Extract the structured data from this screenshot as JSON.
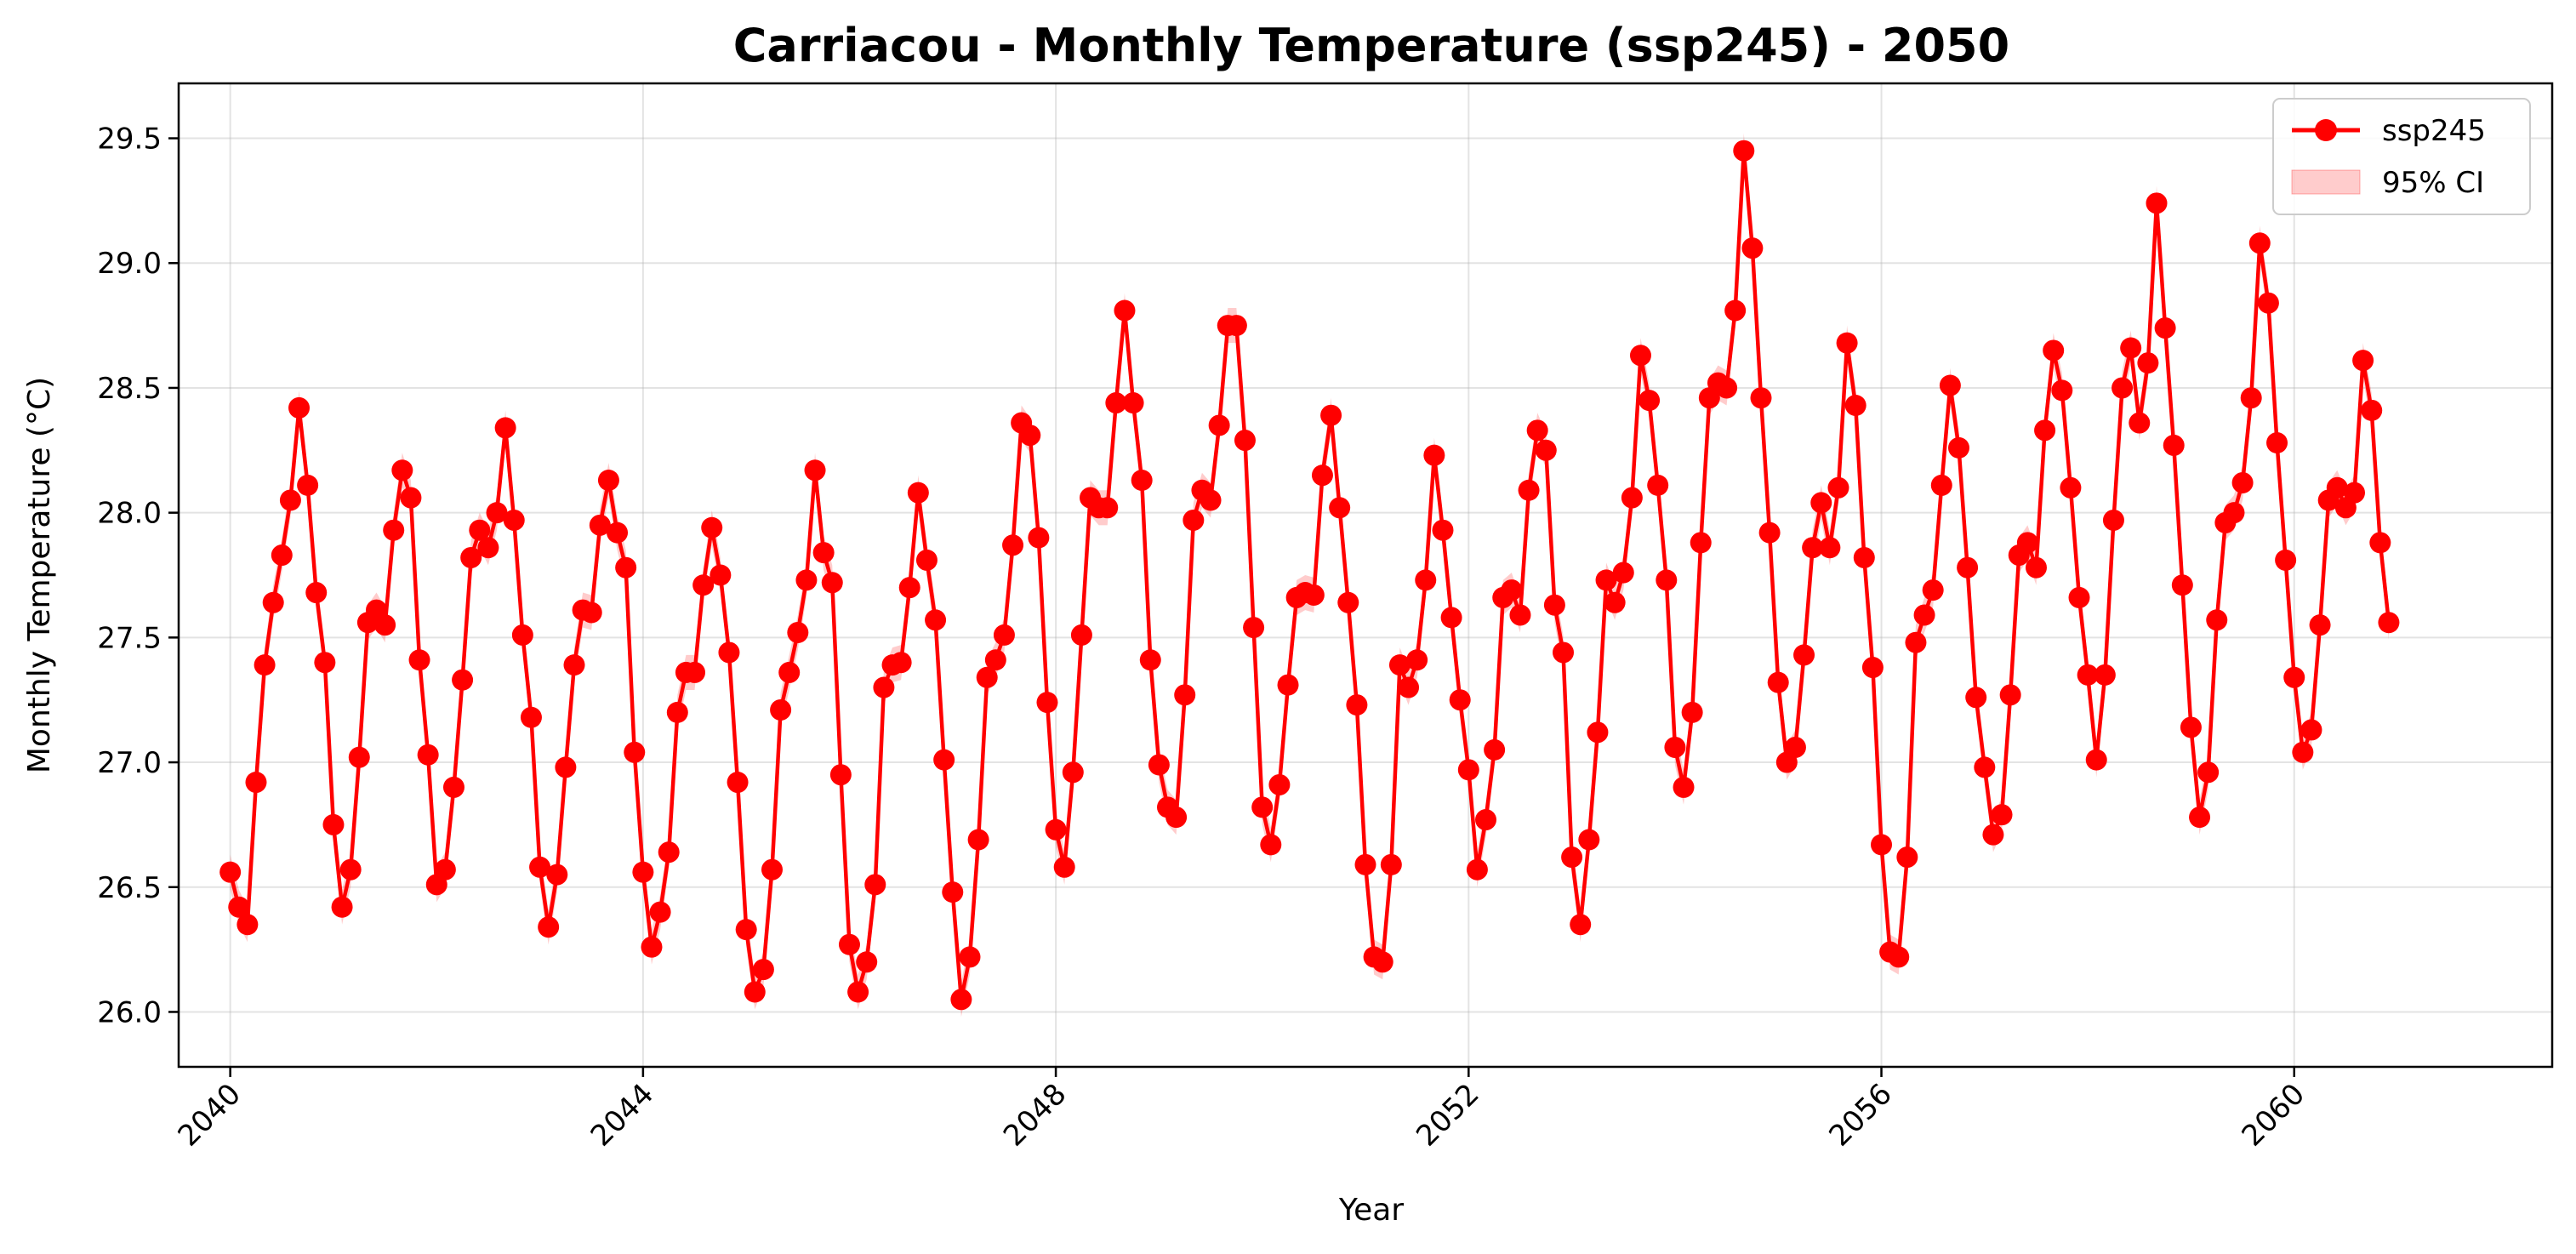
{
  "chart_data": {
    "type": "line",
    "title": "Carriacou - Monthly Temperature (ssp245) - 2050",
    "xlabel": "Year",
    "ylabel": "Monthly Temperature (°C)",
    "xlim": [
      2039.5,
      2062.5
    ],
    "ylim": [
      25.78,
      29.72
    ],
    "x_ticks": [
      2040,
      2044,
      2048,
      2052,
      2056,
      2060
    ],
    "x_tick_labels": [
      "2040",
      "2044",
      "2048",
      "2052",
      "2056",
      "2060"
    ],
    "y_ticks": [
      26.0,
      26.5,
      27.0,
      27.5,
      28.0,
      28.5,
      29.0,
      29.5
    ],
    "y_tick_labels": [
      "26.0",
      "26.5",
      "27.0",
      "27.5",
      "28.0",
      "28.5",
      "29.0",
      "29.5"
    ],
    "grid": true,
    "legend_position": "top-right",
    "x_start": "2040-01",
    "x_step": "1 month",
    "series": [
      {
        "name": "ssp245",
        "color": "#ff0000",
        "marker": "circle",
        "values": [
          26.56,
          26.42,
          26.35,
          26.92,
          27.39,
          27.64,
          27.83,
          28.05,
          28.42,
          28.11,
          27.68,
          27.4,
          26.75,
          26.42,
          26.57,
          27.02,
          27.56,
          27.61,
          27.55,
          27.93,
          28.17,
          28.06,
          27.41,
          27.03,
          26.51,
          26.57,
          26.9,
          27.33,
          27.82,
          27.93,
          27.86,
          28.0,
          28.34,
          27.97,
          27.51,
          27.18,
          26.58,
          26.34,
          26.55,
          26.98,
          27.39,
          27.61,
          27.6,
          27.95,
          28.13,
          27.92,
          27.78,
          27.04,
          26.56,
          26.26,
          26.4,
          26.64,
          27.2,
          27.36,
          27.36,
          27.71,
          27.94,
          27.75,
          27.44,
          26.92,
          26.33,
          26.08,
          26.17,
          26.57,
          27.21,
          27.36,
          27.52,
          27.73,
          28.17,
          27.84,
          27.72,
          26.95,
          26.27,
          26.08,
          26.2,
          26.51,
          27.3,
          27.39,
          27.4,
          27.7,
          28.08,
          27.81,
          27.57,
          27.01,
          26.48,
          26.05,
          26.22,
          26.69,
          27.34,
          27.41,
          27.51,
          27.87,
          28.36,
          28.31,
          27.9,
          27.24,
          26.73,
          26.58,
          26.96,
          27.51,
          28.06,
          28.02,
          28.02,
          28.44,
          28.81,
          28.44,
          28.13,
          27.41,
          26.99,
          26.82,
          26.78,
          27.27,
          27.97,
          28.09,
          28.05,
          28.35,
          28.75,
          28.75,
          28.29,
          27.54,
          26.82,
          26.67,
          26.91,
          27.31,
          27.66,
          27.68,
          27.67,
          28.15,
          28.39,
          28.02,
          27.64,
          27.23,
          26.59,
          26.22,
          26.2,
          26.59,
          27.39,
          27.3,
          27.41,
          27.73,
          28.23,
          27.93,
          27.58,
          27.25,
          26.97,
          26.57,
          26.77,
          27.05,
          27.66,
          27.69,
          27.59,
          28.09,
          28.33,
          28.25,
          27.63,
          27.44,
          26.62,
          26.35,
          26.69,
          27.12,
          27.73,
          27.64,
          27.76,
          28.06,
          28.63,
          28.45,
          28.11,
          27.73,
          27.06,
          26.9,
          27.2,
          27.88,
          28.46,
          28.52,
          28.5,
          28.81,
          29.45,
          29.06,
          28.46,
          27.92,
          27.32,
          27.0,
          27.06,
          27.43,
          27.86,
          28.04,
          27.86,
          28.1,
          28.68,
          28.43,
          27.82,
          27.38,
          26.67,
          26.24,
          26.22,
          26.62,
          27.48,
          27.59,
          27.69,
          28.11,
          28.51,
          28.26,
          27.78,
          27.26,
          26.98,
          26.71,
          26.79,
          27.27,
          27.83,
          27.88,
          27.78,
          28.33,
          28.65,
          28.49,
          28.1,
          27.66,
          27.35,
          27.01,
          27.35,
          27.97,
          28.5,
          28.66,
          28.36,
          28.6,
          29.24,
          28.74,
          28.27,
          27.71,
          27.14,
          26.78,
          26.96,
          27.57,
          27.96,
          28.0,
          28.12,
          28.46,
          29.08,
          28.84,
          28.28,
          27.81,
          27.34,
          27.04,
          27.13,
          27.55,
          28.05,
          28.1,
          28.02,
          28.08,
          28.61,
          28.41,
          27.88,
          27.56
        ]
      },
      {
        "name": "95% CI",
        "color": "#ff0000",
        "opacity": 0.2,
        "half_width": 0.07
      }
    ]
  }
}
